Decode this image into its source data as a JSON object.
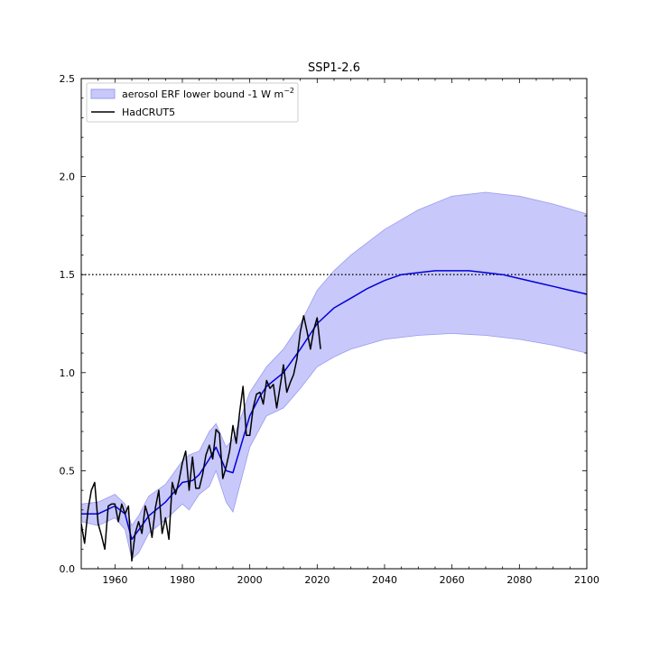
{
  "chart_data": {
    "type": "line",
    "title": "SSP1-2.6",
    "xlabel": "",
    "ylabel": "",
    "xlim": [
      1950,
      2100
    ],
    "ylim": [
      0.0,
      2.5
    ],
    "x_ticks": [
      1960,
      1980,
      2000,
      2020,
      2040,
      2060,
      2080,
      2100
    ],
    "x_tick_labels": [
      "1960",
      "1980",
      "2000",
      "2020",
      "2040",
      "2060",
      "2080",
      "2100"
    ],
    "y_ticks": [
      0.0,
      0.5,
      1.0,
      1.5,
      2.0,
      2.5
    ],
    "y_tick_labels": [
      "0.0",
      "0.5",
      "1.0",
      "1.5",
      "2.0",
      "2.5"
    ],
    "grid": false,
    "legend_position": "top-left",
    "legend": {
      "band_label": "aerosol ERF lower bound -1 W m",
      "band_label_superscript": "−2",
      "observed_label": "HadCRUT5"
    },
    "colors": {
      "band_fill": "#c8c8fa",
      "band_edge": "#9b9bf0",
      "median_line": "#0000dd",
      "observed_line": "#000000",
      "threshold_line": "#000000"
    },
    "threshold": {
      "y": 1.5,
      "style": "dotted"
    },
    "band": {
      "name": "aerosol ERF lower bound -1 W m−2",
      "x": [
        1950,
        1955,
        1960,
        1963,
        1965,
        1967,
        1970,
        1975,
        1980,
        1982,
        1985,
        1988,
        1990,
        1993,
        1995,
        2000,
        2005,
        2010,
        2015,
        2020,
        2025,
        2030,
        2040,
        2050,
        2060,
        2070,
        2080,
        2090,
        2100
      ],
      "lower": [
        0.24,
        0.22,
        0.26,
        0.2,
        0.05,
        0.08,
        0.18,
        0.25,
        0.33,
        0.3,
        0.38,
        0.42,
        0.5,
        0.34,
        0.29,
        0.62,
        0.78,
        0.82,
        0.92,
        1.03,
        1.08,
        1.12,
        1.17,
        1.19,
        1.2,
        1.19,
        1.17,
        1.14,
        1.1
      ],
      "upper": [
        0.33,
        0.34,
        0.38,
        0.33,
        0.22,
        0.27,
        0.37,
        0.43,
        0.55,
        0.58,
        0.6,
        0.7,
        0.74,
        0.62,
        0.66,
        0.9,
        1.03,
        1.12,
        1.25,
        1.42,
        1.52,
        1.6,
        1.73,
        1.83,
        1.9,
        1.92,
        1.9,
        1.86,
        1.81
      ]
    },
    "series": [
      {
        "name": "median",
        "x": [
          1950,
          1955,
          1960,
          1963,
          1965,
          1968,
          1970,
          1975,
          1980,
          1983,
          1985,
          1988,
          1990,
          1993,
          1995,
          2000,
          2003,
          2005,
          2010,
          2015,
          2020,
          2025,
          2030,
          2035,
          2040,
          2045,
          2050,
          2055,
          2060,
          2065,
          2070,
          2075,
          2080,
          2085,
          2090,
          2095,
          2100
        ],
        "y": [
          0.28,
          0.28,
          0.32,
          0.28,
          0.15,
          0.22,
          0.27,
          0.34,
          0.44,
          0.45,
          0.48,
          0.56,
          0.62,
          0.5,
          0.49,
          0.78,
          0.88,
          0.93,
          1.0,
          1.12,
          1.25,
          1.33,
          1.38,
          1.43,
          1.47,
          1.5,
          1.51,
          1.52,
          1.52,
          1.52,
          1.51,
          1.5,
          1.48,
          1.46,
          1.44,
          1.42,
          1.4
        ]
      },
      {
        "name": "HadCRUT5",
        "x": [
          1950,
          1951,
          1952,
          1953,
          1954,
          1955,
          1956,
          1957,
          1958,
          1959,
          1960,
          1961,
          1962,
          1963,
          1964,
          1965,
          1966,
          1967,
          1968,
          1969,
          1970,
          1971,
          1972,
          1973,
          1974,
          1975,
          1976,
          1977,
          1978,
          1979,
          1980,
          1981,
          1982,
          1983,
          1984,
          1985,
          1986,
          1987,
          1988,
          1989,
          1990,
          1991,
          1992,
          1993,
          1994,
          1995,
          1996,
          1997,
          1998,
          1999,
          2000,
          2001,
          2002,
          2003,
          2004,
          2005,
          2006,
          2007,
          2008,
          2009,
          2010,
          2011,
          2012,
          2013,
          2014,
          2015,
          2016,
          2017,
          2018,
          2019,
          2020,
          2021
        ],
        "y": [
          0.23,
          0.13,
          0.3,
          0.4,
          0.44,
          0.23,
          0.17,
          0.1,
          0.32,
          0.33,
          0.33,
          0.24,
          0.33,
          0.28,
          0.32,
          0.04,
          0.18,
          0.24,
          0.18,
          0.32,
          0.26,
          0.16,
          0.31,
          0.4,
          0.18,
          0.26,
          0.15,
          0.44,
          0.38,
          0.45,
          0.54,
          0.6,
          0.4,
          0.57,
          0.41,
          0.41,
          0.48,
          0.58,
          0.63,
          0.56,
          0.71,
          0.69,
          0.46,
          0.52,
          0.6,
          0.73,
          0.64,
          0.8,
          0.93,
          0.68,
          0.68,
          0.82,
          0.89,
          0.9,
          0.84,
          0.96,
          0.92,
          0.94,
          0.82,
          0.93,
          1.04,
          0.9,
          0.95,
          0.99,
          1.07,
          1.21,
          1.29,
          1.21,
          1.12,
          1.22,
          1.28,
          1.12
        ]
      }
    ]
  }
}
